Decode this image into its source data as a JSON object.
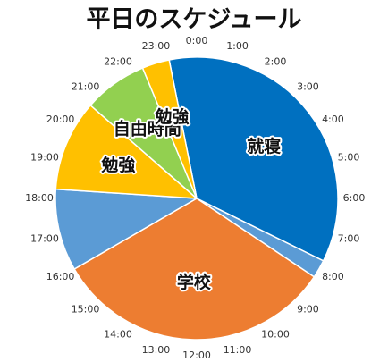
{
  "chart_data": {
    "type": "pie",
    "title": "平日のスケジュール",
    "categories": [
      "就寝",
      null,
      "学校",
      null,
      "勉強",
      "自由時間",
      "勉強"
    ],
    "values": [
      8.5,
      0.5,
      7.75,
      2.25,
      2.5,
      1.75,
      0.75
    ],
    "colors": [
      "#0070c0",
      "#5b9bd5",
      "#ed7d31",
      "#5b9bd5",
      "#ffc000",
      "#92d050",
      "#ffc000"
    ],
    "start_angle": -11.25,
    "clock_labels": [
      "0:00",
      "1:00",
      "2:00",
      "3:00",
      "4:00",
      "5:00",
      "6:00",
      "7:00",
      "8:00",
      "9:00",
      "10:00",
      "11:00",
      "12:00",
      "13:00",
      "14:00",
      "15:00",
      "16:00",
      "17:00",
      "18:00",
      "19:00",
      "20:00",
      "21:00",
      "22:00",
      "23:00"
    ]
  }
}
